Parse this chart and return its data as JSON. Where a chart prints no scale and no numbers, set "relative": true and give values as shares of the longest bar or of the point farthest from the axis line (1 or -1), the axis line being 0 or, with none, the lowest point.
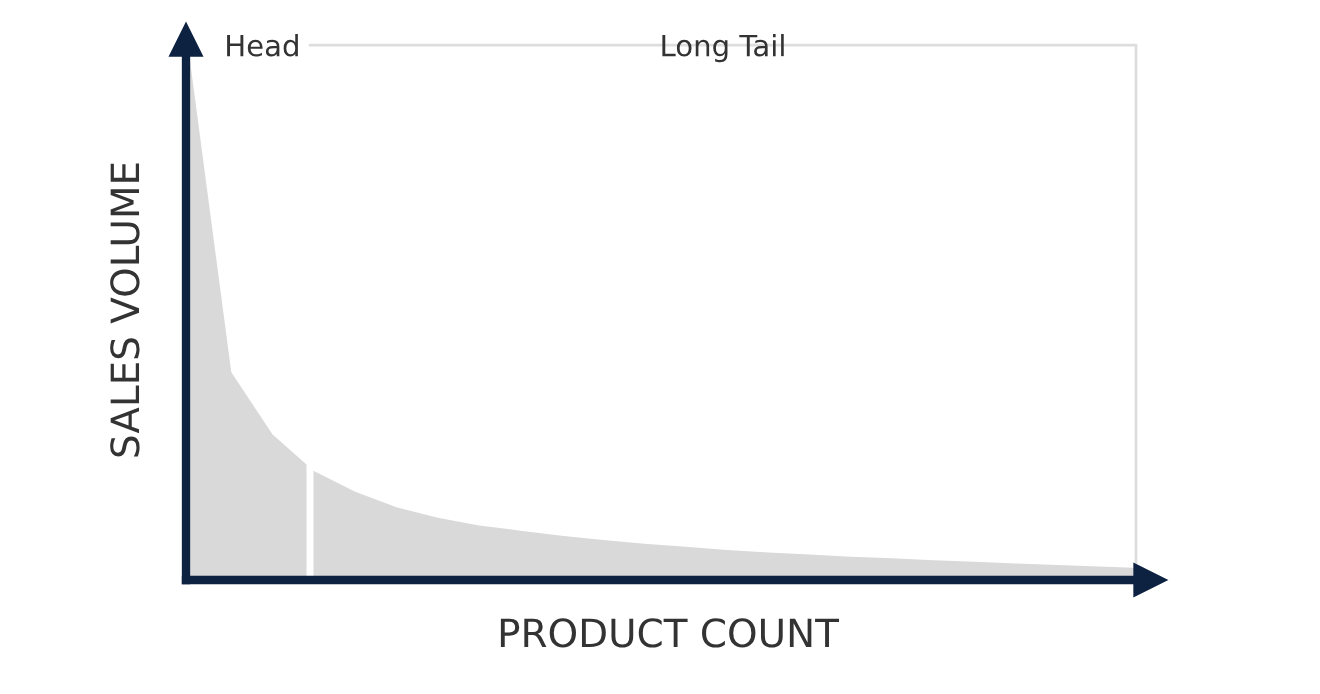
{
  "chart_data": {
    "type": "area",
    "relative": true,
    "xlabel": "PRODUCT COUNT",
    "ylabel": "SALES VOLUME",
    "annotations": [
      "Head",
      "Long Tail"
    ],
    "categories": [
      null,
      null,
      null,
      null,
      null,
      null,
      null,
      null,
      null,
      null,
      null,
      null,
      null,
      null,
      null,
      null,
      null,
      null,
      null,
      null,
      null,
      null,
      null,
      null
    ],
    "series": [
      {
        "color": "#d9d9d9",
        "values": [
          1.0,
          0.4,
          0.28,
          0.21,
          0.17,
          0.14,
          0.12,
          0.105,
          0.095,
          0.085,
          0.077,
          0.07,
          0.064,
          0.058,
          0.053,
          0.049,
          0.045,
          0.042,
          0.038,
          0.035,
          0.032,
          0.029,
          0.026,
          0.023
        ]
      }
    ],
    "grid": false,
    "legend": false
  }
}
